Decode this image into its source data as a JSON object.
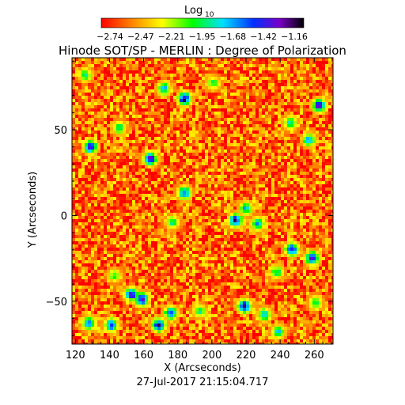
{
  "colorbar": {
    "title": "Log",
    "title_sub": "10",
    "ticks": [
      "-2.74",
      "-2.47",
      "-2.21",
      "-1.95",
      "-1.68",
      "-1.42",
      "-1.16"
    ],
    "range": [
      -2.74,
      -1.16
    ],
    "colormap": "rainbow (red → orange → yellow → green → cyan → blue → violet → black)"
  },
  "chart_data": {
    "type": "heatmap",
    "title": "Hinode SOT/SP - MERLIN : Degree of Polarization",
    "xlabel": "X (Arcseconds)",
    "ylabel": "Y (Arcseconds)",
    "timestamp": "27-Jul-2017 21:15:04.717",
    "xlim": [
      118,
      271
    ],
    "ylim": [
      -75,
      92
    ],
    "x_ticks": [
      120,
      140,
      160,
      180,
      200,
      220,
      240,
      260
    ],
    "y_ticks": [
      -50,
      0,
      50
    ],
    "value_range": [
      -2.74,
      -1.16
    ],
    "background_level": -2.55,
    "enhanced_patches": [
      {
        "x": 183,
        "y": 69,
        "level": -1.2
      },
      {
        "x": 171,
        "y": 75,
        "level": -1.7
      },
      {
        "x": 125,
        "y": 83,
        "level": -1.9
      },
      {
        "x": 200,
        "y": 78,
        "level": -1.95
      },
      {
        "x": 145,
        "y": 52,
        "level": -1.9
      },
      {
        "x": 262,
        "y": 65,
        "level": -1.3
      },
      {
        "x": 256,
        "y": 45,
        "level": -1.7
      },
      {
        "x": 245,
        "y": 55,
        "level": -1.8
      },
      {
        "x": 128,
        "y": 41,
        "level": -1.35
      },
      {
        "x": 163,
        "y": 34,
        "level": -1.25
      },
      {
        "x": 183,
        "y": 14,
        "level": -1.5
      },
      {
        "x": 219,
        "y": 5,
        "level": -1.7
      },
      {
        "x": 213,
        "y": -2,
        "level": -1.3
      },
      {
        "x": 226,
        "y": -4,
        "level": -1.7
      },
      {
        "x": 176,
        "y": -3,
        "level": -1.9
      },
      {
        "x": 246,
        "y": -19,
        "level": -1.4
      },
      {
        "x": 258,
        "y": -24,
        "level": -1.3
      },
      {
        "x": 237,
        "y": -32,
        "level": -1.9
      },
      {
        "x": 142,
        "y": -34,
        "level": -2.0
      },
      {
        "x": 152,
        "y": -45,
        "level": -1.3
      },
      {
        "x": 158,
        "y": -48,
        "level": -1.25
      },
      {
        "x": 168,
        "y": -63,
        "level": -1.3
      },
      {
        "x": 175,
        "y": -56,
        "level": -1.5
      },
      {
        "x": 218,
        "y": -52,
        "level": -1.3
      },
      {
        "x": 230,
        "y": -57,
        "level": -1.7
      },
      {
        "x": 127,
        "y": -62,
        "level": -1.6
      },
      {
        "x": 140,
        "y": -63,
        "level": -1.5
      },
      {
        "x": 192,
        "y": -55,
        "level": -1.9
      },
      {
        "x": 238,
        "y": -67,
        "level": -1.8
      },
      {
        "x": 260,
        "y": -50,
        "level": -1.9
      }
    ]
  }
}
